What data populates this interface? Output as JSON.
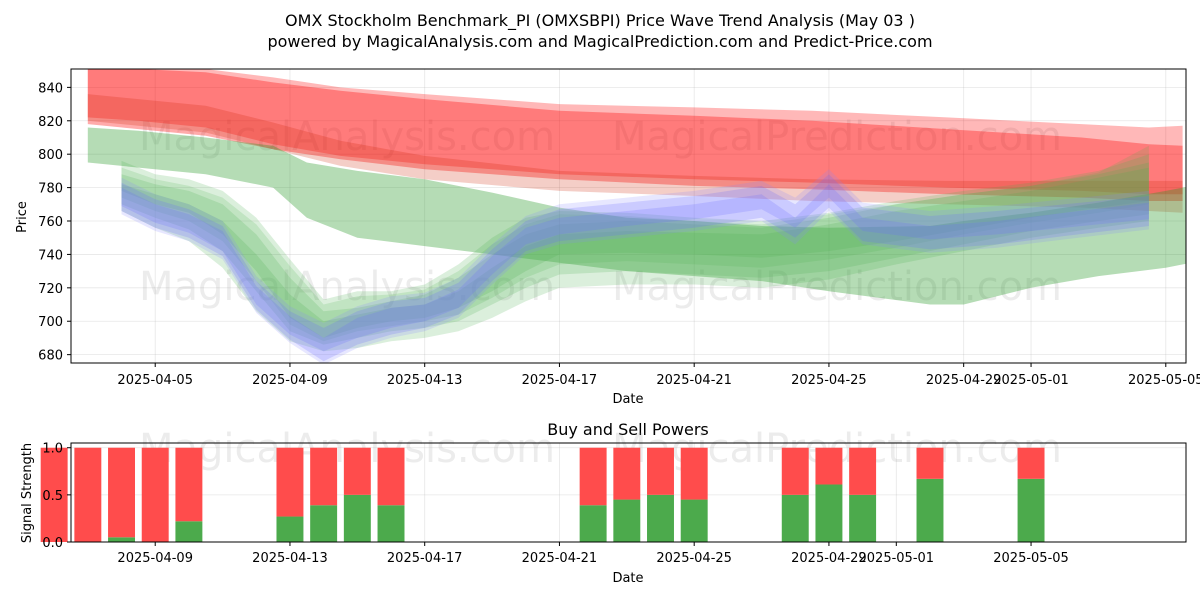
{
  "chart_data": [
    {
      "type": "area",
      "title_line1": "OMX Stockholm Benchmark_PI (OMXSBPI) Price Wave Trend Analysis (May 03 )",
      "title_line2": "powered by MagicalAnalysis.com and MagicalPrediction.com and Predict-Price.com",
      "xlabel": "Date",
      "ylabel": "Price",
      "xlim": [
        -1.5,
        31.6
      ],
      "ylim": [
        675,
        851
      ],
      "x_ticks": [
        {
          "pos": 1,
          "label": "2025-04-05"
        },
        {
          "pos": 5,
          "label": "2025-04-09"
        },
        {
          "pos": 9,
          "label": "2025-04-13"
        },
        {
          "pos": 13,
          "label": "2025-04-17"
        },
        {
          "pos": 17,
          "label": "2025-04-21"
        },
        {
          "pos": 21,
          "label": "2025-04-25"
        },
        {
          "pos": 25,
          "label": "2025-04-29"
        },
        {
          "pos": 27,
          "label": "2025-05-01"
        },
        {
          "pos": 31,
          "label": "2025-05-05"
        }
      ],
      "y_ticks": [
        680,
        700,
        720,
        740,
        760,
        780,
        800,
        820,
        840
      ],
      "watermarks": [
        "MagicalAnalysis.com",
        "MagicalPrediction.com",
        "MagicalAnalysis.com",
        "MagicalPrediction.com"
      ],
      "bands": [
        {
          "name": "red-forecast-upper",
          "color": "#ff0000",
          "opacity": 0.28,
          "x": [
            -1,
            0.5,
            2.5,
            4.5,
            6.5,
            9,
            13,
            17,
            20.5,
            24.5,
            28.5,
            30.5,
            31.5
          ],
          "upper": [
            851,
            852,
            851,
            846,
            840,
            836,
            830,
            828,
            826,
            822,
            818,
            816,
            817
          ],
          "lower": [
            822,
            820,
            816,
            806,
            799,
            794,
            788,
            785,
            783,
            780,
            778,
            776,
            776
          ]
        },
        {
          "name": "red-forecast-main",
          "color": "#ff0000",
          "opacity": 0.33,
          "x": [
            -1,
            0.5,
            2.5,
            4.5,
            6.5,
            9,
            13,
            17,
            20.5,
            24.5,
            28.5,
            30.5,
            31.5
          ],
          "upper": [
            851,
            851,
            849,
            843,
            838,
            833,
            826,
            823,
            820,
            815,
            810,
            806,
            805
          ],
          "lower": [
            818,
            815,
            811,
            803,
            797,
            791,
            785,
            781,
            779,
            776,
            774,
            772,
            772
          ]
        },
        {
          "name": "red-forecast-core",
          "color": "#cc2200",
          "opacity": 0.22,
          "x": [
            -1,
            0.5,
            2.5,
            4.5,
            6.5,
            9,
            13,
            17,
            20.5,
            24.5,
            28.5,
            30.5,
            31.5
          ],
          "upper": [
            836,
            833,
            829,
            819,
            808,
            799,
            790,
            787,
            785,
            784,
            784,
            784,
            784
          ],
          "lower": [
            820,
            817,
            813,
            803,
            793,
            785,
            778,
            775,
            772,
            770,
            768,
            766,
            765
          ]
        },
        {
          "name": "green-wide-band",
          "color": "#2a9a2a",
          "opacity": 0.35,
          "x": [
            -1,
            0.5,
            2.5,
            4.5,
            5.5,
            7,
            9,
            11,
            13,
            15,
            17,
            19,
            21,
            24,
            25,
            27,
            29,
            31,
            32
          ],
          "upper": [
            816,
            814,
            810,
            805,
            795,
            790,
            785,
            777,
            768,
            762,
            760,
            757,
            756,
            757,
            760,
            765,
            771,
            778,
            782
          ],
          "lower": [
            795,
            792,
            788,
            780,
            762,
            750,
            745,
            740,
            735,
            730,
            727,
            724,
            718,
            710,
            710,
            720,
            727,
            732,
            736
          ]
        },
        {
          "name": "green-wave-1",
          "color": "#4caf50",
          "opacity": 0.2,
          "x": [
            0,
            1,
            2,
            3,
            4,
            5,
            6,
            7,
            8,
            9,
            10,
            11,
            12,
            13,
            15,
            17,
            19,
            21,
            23,
            25,
            27,
            29,
            30.5
          ],
          "upper": [
            796,
            788,
            785,
            778,
            762,
            737,
            713,
            718,
            718,
            722,
            734,
            750,
            762,
            766,
            765,
            762,
            760,
            765,
            772,
            778,
            783,
            790,
            800
          ],
          "lower": [
            778,
            770,
            765,
            752,
            730,
            702,
            690,
            696,
            700,
            702,
            708,
            718,
            730,
            740,
            741,
            740,
            738,
            742,
            748,
            755,
            762,
            768,
            772
          ]
        },
        {
          "name": "green-wave-2",
          "color": "#4caf50",
          "opacity": 0.2,
          "x": [
            0,
            1,
            2,
            3,
            4,
            5,
            6,
            7,
            8,
            9,
            10,
            11,
            12,
            13,
            15,
            17,
            19,
            21,
            23,
            25,
            27,
            29,
            30.5
          ],
          "upper": [
            788,
            782,
            778,
            770,
            752,
            726,
            706,
            708,
            712,
            716,
            726,
            740,
            752,
            758,
            760,
            758,
            756,
            762,
            770,
            776,
            781,
            788,
            795
          ],
          "lower": [
            770,
            762,
            755,
            742,
            718,
            694,
            686,
            690,
            694,
            696,
            700,
            710,
            720,
            728,
            730,
            728,
            726,
            730,
            738,
            746,
            754,
            760,
            764
          ]
        },
        {
          "name": "green-wave-3",
          "color": "#4caf50",
          "opacity": 0.2,
          "x": [
            0,
            1,
            2,
            3,
            4,
            5,
            6,
            7,
            8,
            9,
            10,
            11,
            12,
            13,
            15,
            17,
            19,
            21,
            23,
            25,
            27,
            29,
            30.5
          ],
          "upper": [
            782,
            776,
            770,
            760,
            740,
            716,
            700,
            704,
            708,
            710,
            718,
            732,
            745,
            752,
            754,
            753,
            752,
            758,
            766,
            772,
            778,
            786,
            792
          ],
          "lower": [
            766,
            756,
            748,
            732,
            706,
            688,
            682,
            684,
            688,
            690,
            694,
            702,
            712,
            720,
            722,
            722,
            720,
            725,
            734,
            742,
            750,
            756,
            760
          ]
        },
        {
          "name": "green-wave-4",
          "color": "#4caf50",
          "opacity": 0.18,
          "x": [
            0,
            1,
            2,
            3,
            4,
            5,
            6,
            7,
            8,
            9,
            10,
            11,
            12,
            13,
            15,
            17,
            19,
            21,
            23,
            25,
            27,
            29,
            30.5
          ],
          "upper": [
            792,
            785,
            781,
            774,
            758,
            733,
            710,
            715,
            716,
            719,
            730,
            746,
            758,
            764,
            763,
            760,
            758,
            764,
            770,
            776,
            781,
            789,
            805
          ],
          "lower": [
            774,
            766,
            760,
            748,
            724,
            698,
            688,
            694,
            697,
            700,
            704,
            714,
            726,
            734,
            736,
            734,
            732,
            737,
            744,
            752,
            759,
            765,
            770
          ]
        },
        {
          "name": "blue-wave-1",
          "color": "#6666ff",
          "opacity": 0.22,
          "x": [
            0,
            1,
            2,
            3,
            4,
            5,
            6,
            7,
            8,
            9,
            10,
            11,
            12,
            13,
            15,
            17,
            19,
            20,
            21,
            22,
            24,
            26,
            28,
            30.5
          ],
          "upper": [
            783,
            773,
            767,
            757,
            724,
            706,
            696,
            706,
            712,
            714,
            723,
            743,
            760,
            767,
            771,
            775,
            781,
            770,
            788,
            768,
            763,
            766,
            770,
            775
          ],
          "lower": [
            769,
            759,
            753,
            742,
            710,
            692,
            682,
            690,
            696,
            700,
            708,
            728,
            746,
            752,
            757,
            761,
            767,
            756,
            774,
            754,
            749,
            752,
            756,
            761
          ]
        },
        {
          "name": "blue-wave-2",
          "color": "#6666ff",
          "opacity": 0.22,
          "x": [
            0,
            1,
            2,
            3,
            4,
            5,
            6,
            7,
            8,
            9,
            10,
            11,
            12,
            13,
            15,
            17,
            19,
            20,
            21,
            22,
            24,
            26,
            28,
            30.5
          ],
          "upper": [
            780,
            770,
            764,
            754,
            721,
            703,
            690,
            702,
            708,
            710,
            719,
            739,
            756,
            762,
            766,
            770,
            776,
            762,
            782,
            762,
            757,
            760,
            765,
            771
          ],
          "lower": [
            766,
            756,
            750,
            739,
            707,
            689,
            676,
            686,
            692,
            696,
            704,
            724,
            742,
            748,
            752,
            756,
            762,
            750,
            768,
            748,
            743,
            746,
            751,
            757
          ]
        },
        {
          "name": "blue-wave-3",
          "color": "#8888ff",
          "opacity": 0.2,
          "x": [
            0,
            1,
            2,
            3,
            4,
            5,
            6,
            7,
            8,
            9,
            10,
            11,
            12,
            13,
            15,
            17,
            19,
            20,
            21,
            22,
            24,
            26,
            28,
            30.5
          ],
          "upper": [
            786,
            776,
            770,
            760,
            727,
            709,
            699,
            709,
            715,
            717,
            726,
            746,
            763,
            770,
            774,
            778,
            784,
            774,
            791,
            771,
            766,
            769,
            773,
            778
          ],
          "lower": [
            764,
            754,
            748,
            737,
            705,
            687,
            674,
            684,
            690,
            694,
            702,
            722,
            740,
            746,
            750,
            754,
            760,
            746,
            766,
            746,
            741,
            744,
            749,
            755
          ]
        }
      ]
    },
    {
      "type": "bar",
      "title": "Buy and Sell Powers",
      "xlabel": "Date",
      "ylabel": "Signal Strength",
      "xlim": [
        -1.5,
        31.6
      ],
      "ylim": [
        0,
        1.05
      ],
      "x_ticks": [
        {
          "pos": 1,
          "label": "2025-04-09"
        },
        {
          "pos": 5,
          "label": "2025-04-13"
        },
        {
          "pos": 9,
          "label": "2025-04-17"
        },
        {
          "pos": 13,
          "label": "2025-04-21"
        },
        {
          "pos": 17,
          "label": "2025-04-25"
        },
        {
          "pos": 21,
          "label": "2025-04-29"
        },
        {
          "pos": 23,
          "label": "2025-05-01"
        },
        {
          "pos": 27,
          "label": "2025-05-05"
        }
      ],
      "y_ticks": [
        0.0,
        0.5,
        1.0
      ],
      "y_tick_labels": [
        "0.0",
        "0.5",
        "1.0"
      ],
      "watermarks": [
        "MagicalAnalysis.com",
        "MagicalPrediction.com"
      ],
      "buy_color": "#4caa4c",
      "sell_color": "#ff4c4c",
      "x": [
        -2,
        -1,
        0,
        1,
        2,
        5,
        6,
        7,
        8,
        14,
        15,
        16,
        17,
        20,
        21,
        22,
        24,
        27
      ],
      "buy": [
        0.0,
        0.0,
        0.05,
        0.0,
        0.22,
        0.27,
        0.39,
        0.5,
        0.39,
        0.39,
        0.45,
        0.5,
        0.45,
        0.5,
        0.61,
        0.5,
        0.67,
        0.67
      ],
      "sell": [
        1.0,
        1.0,
        0.95,
        1.0,
        0.78,
        0.73,
        0.61,
        0.5,
        0.61,
        0.61,
        0.55,
        0.5,
        0.55,
        0.5,
        0.39,
        0.5,
        0.33,
        0.33
      ]
    }
  ]
}
